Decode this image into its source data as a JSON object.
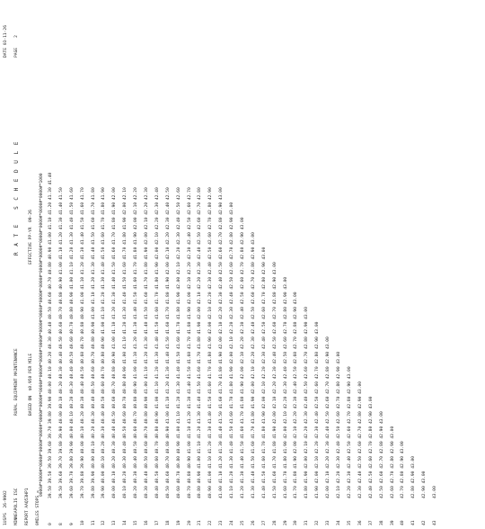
{
  "header": {
    "form_id": "1USPS  26-9902",
    "location": "MINNEAPOLIS ISC",
    "report": "REPORT AAQ53HP1",
    "columns_label": "0MILES STOPS =",
    "stops_header": "0000#*0000#*0000#*0000#*0000#*0000#*0000#*0000#*0000#*0000#*0000#*0000#*0000#*0000#*0000#*0000#*0000#*0000#*0000#*0000#*0000#*1000",
    "title": "RURAL EQUIPMENT MAINTENANCE",
    "basis": "BASED ON  $0.950 PER MILE",
    "schedule_title": "R A T E   S C H E D U L E",
    "effective": "EFFECTIVE PP-YR  09-26",
    "date": "DATE 03-11-26",
    "page": "PAGE    2"
  },
  "rows": [
    {
      "miles": "0",
      "values": "39.50 39.50 39.50 39.60 39.70 39.80 39.90 40.00 40.10 40.20 40.30 40.40 40.50 40.60 40.70 40.80 40.90 41.00 41.10 41.20 41.30 41.40"
    },
    {
      "miles": "8",
      "values": "39.50 39.60 39.70 39.80 39.90 40.00 40.10 40.20 40.30 40.40 40.50 40.60 40.70 40.80 40.90 41.00 41.10 41.20 41.30 41.40 41.50"
    },
    {
      "miles": "9",
      "values": "39.60 39.70 39.80 39.90 40.00 40.10 40.20 40.30 40.40 40.50 40.60 40.70 40.80 40.90 41.00 41.10 41.20 41.30 41.40 41.50 41.60"
    },
    {
      "miles": "10",
      "values": "39.70 39.80 39.90 40.00 40.10 40.20 40.30 40.40 40.50 40.60 40.70 40.80 40.90 41.00 41.10 41.20 41.30 41.40 41.50 41.60 41.70"
    },
    {
      "miles": "11",
      "values": "39.80 39.90 40.00 40.10 40.20 40.30 40.40 40.50 40.60 40.70 40.80 40.90 41.00 41.10 41.20 41.30 41.40 41.50 41.60 41.70 41.80"
    },
    {
      "miles": "12",
      "values": "39.90 40.00 40.10 40.20 40.30 40.40 40.50 40.60 40.70 40.80 40.90 41.00 41.10 41.20 41.30 41.40 41.50 41.60 41.70 41.80 41.90"
    },
    {
      "miles": "13",
      "values": "40.00 40.10 40.20 40.30 40.40 40.50 40.60 40.70 40.80 40.90 41.00 41.10 41.20 41.30 41.40 41.50 41.60 41.70 41.80 41.90 42.00"
    },
    {
      "miles": "14",
      "values": "40.10 40.20 40.30 40.40 40.50 40.60 40.70 40.80 40.90 41.00 41.10 41.20 41.30 41.40 41.50 41.60 41.70 41.80 41.90 42.00 42.10"
    },
    {
      "miles": "15",
      "values": "40.20 40.30 40.40 40.50 40.60 40.70 40.80 40.90 41.00 41.10 41.20 41.30 41.40 41.50 41.60 41.70 41.80 41.90 42.00 42.10 42.20"
    },
    {
      "miles": "16",
      "values": "40.30 40.40 40.50 40.60 40.70 40.80 40.90 41.00 41.10 41.20 41.30 41.40 41.50 41.60 41.70 41.80 41.90 42.00 42.10 42.20 42.30"
    },
    {
      "miles": "17",
      "values": "40.40 40.50 40.60 40.70 40.80 40.90 41.00 41.10 41.20 41.30 41.40 41.50 41.60 41.70 41.80 41.90 42.00 42.10 42.20 42.30 42.40"
    },
    {
      "miles": "18",
      "values": "40.50 40.60 40.70 40.80 40.90 41.00 41.10 41.20 41.30 41.40 41.50 41.60 41.70 41.80 41.90 42.00 42.10 42.20 42.30 42.40 42.50"
    },
    {
      "miles": "19",
      "values": "40.60 40.70 40.80 40.90 41.00 41.10 41.20 41.30 41.40 41.50 41.60 41.70 41.80 41.90 42.00 42.10 42.20 42.30 42.40 42.50 42.60"
    },
    {
      "miles": "20",
      "values": "40.70 40.80 40.90 41.00 41.10 41.20 41.30 41.40 41.50 41.60 41.70 41.80 41.90 42.00 42.10 42.20 42.30 42.40 42.50 42.60 42.70"
    },
    {
      "miles": "21",
      "values": "40.80 40.90 41.00 41.10 41.20 41.30 41.40 41.50 41.60 41.70 41.80 41.90 42.00 42.10 42.20 42.30 42.40 42.50 42.60 42.70 42.80"
    },
    {
      "miles": "22",
      "values": "40.90 41.00 41.10 41.20 41.30 41.40 41.50 41.60 41.70 41.80 41.90 42.00 42.10 42.20 42.30 42.40 42.50 42.60 42.70 42.80 42.90"
    },
    {
      "miles": "23",
      "values": "41.00 41.10 41.20 41.30 41.40 41.50 41.60 41.70 41.80 41.90 42.00 42.10 42.20 42.30 42.40 42.50 42.60 42.70 42.80 42.90 43.00"
    },
    {
      "miles": "24",
      "values": "41.10 41.20 41.30 41.40 41.50 41.60 41.70 41.80 41.90 42.00 42.10 42.20 42.30 42.40 42.50 42.60 42.70 42.80 42.90 43.00"
    },
    {
      "miles": "25",
      "values": "41.20 41.30 41.40 41.50 41.60 41.70 41.80 41.90 42.00 42.10 42.20 42.30 42.40 42.50 42.60 42.70 42.80 42.90 43.00"
    },
    {
      "miles": "26",
      "values": "41.30 41.40 41.50 41.60 41.70 41.80 41.90 42.00 42.10 42.20 42.30 42.40 42.50 42.60 42.70 42.80 42.90 43.00"
    },
    {
      "miles": "27",
      "values": "41.40 41.50 41.60 41.70 41.80 41.90 42.00 42.10 42.20 42.30 42.40 42.50 42.60 42.70 42.80 42.90 43.00"
    },
    {
      "miles": "28",
      "values": "41.50 41.60 41.70 41.80 41.90 42.00 42.10 42.20 42.30 42.40 42.50 42.60 42.70 42.80 42.90 43.00"
    },
    {
      "miles": "29",
      "values": "41.60 41.70 41.80 41.90 42.00 42.10 42.20 42.30 42.40 42.50 42.60 42.70 42.80 42.90 43.00"
    },
    {
      "miles": "30",
      "values": "41.70 41.80 41.90 42.00 42.10 42.20 42.30 42.40 42.50 42.60 42.70 42.80 42.90 43.00"
    },
    {
      "miles": "31",
      "values": "41.80 41.90 42.00 42.10 42.20 42.30 42.40 42.50 42.60 42.70 42.80 42.90 43.00"
    },
    {
      "miles": "32",
      "values": "41.90 42.00 42.10 42.20 42.30 42.40 42.50 42.60 42.70 42.80 42.90 43.00"
    },
    {
      "miles": "33",
      "values": "42.00 42.10 42.20 42.30 42.40 42.50 42.60 42.70 42.80 42.90 43.00"
    },
    {
      "miles": "34",
      "values": "42.10 42.20 42.30 42.40 42.50 42.60 42.70 42.80 42.90 43.00"
    },
    {
      "miles": "35",
      "values": "42.20 42.30 42.40 42.50 42.60 42.70 42.80 42.90 43.00"
    },
    {
      "miles": "36",
      "values": "42.30 42.40 42.50 42.60 42.70 42.80 42.90 43.00"
    },
    {
      "miles": "37",
      "values": "42.40 42.50 42.60 42.70 42.80 42.90 43.00"
    },
    {
      "miles": "38",
      "values": "42.50 42.60 42.70 42.80 42.90 43.00"
    },
    {
      "miles": "39",
      "values": "42.60 42.70 42.80 42.90 43.00"
    },
    {
      "miles": "40",
      "values": "42.70 42.80 42.90 43.00"
    },
    {
      "miles": "41",
      "values": "42.80 42.90 43.00"
    },
    {
      "miles": "42",
      "values": "42.90 43.00"
    },
    {
      "miles": "43",
      "values": "43.00"
    }
  ]
}
